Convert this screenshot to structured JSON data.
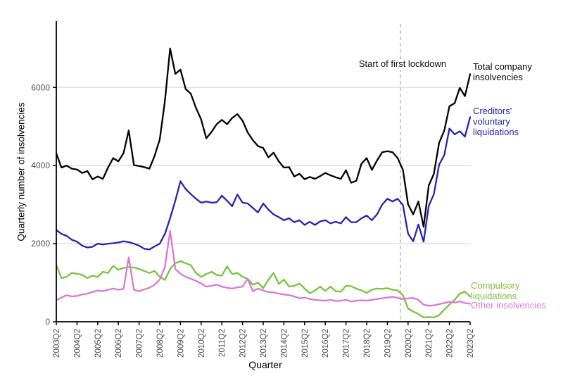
{
  "chart_data": {
    "type": "line",
    "title": "",
    "xlabel": "Quarter",
    "ylabel": "Quarterly number of insolvencies",
    "ylim": [
      0,
      7700
    ],
    "yticks": [
      0,
      2000,
      4000,
      6000
    ],
    "xtick_every": 4,
    "grid": "horizontal light-gray gridlines at yticks",
    "legend_position": "direct labels right of lines",
    "colors": {
      "grid": "#d9d9d9",
      "dashed_line": "#b3b3b3",
      "tick_label": "#4d4d4d",
      "axis": "#000000"
    },
    "annotation": {
      "label": "Start of first lockdown",
      "x_quarter": "2020Q1",
      "style": "vertical dashed gray line"
    },
    "x_quarters": [
      "2003Q2",
      "2003Q3",
      "2003Q4",
      "2004Q1",
      "2004Q2",
      "2004Q3",
      "2004Q4",
      "2005Q1",
      "2005Q2",
      "2005Q3",
      "2005Q4",
      "2006Q1",
      "2006Q2",
      "2006Q3",
      "2006Q4",
      "2007Q1",
      "2007Q2",
      "2007Q3",
      "2007Q4",
      "2008Q1",
      "2008Q2",
      "2008Q3",
      "2008Q4",
      "2009Q1",
      "2009Q2",
      "2009Q3",
      "2009Q4",
      "2010Q1",
      "2010Q2",
      "2010Q3",
      "2010Q4",
      "2011Q1",
      "2011Q2",
      "2011Q3",
      "2011Q4",
      "2012Q1",
      "2012Q2",
      "2012Q3",
      "2012Q4",
      "2013Q1",
      "2013Q2",
      "2013Q3",
      "2013Q4",
      "2014Q1",
      "2014Q2",
      "2014Q3",
      "2014Q4",
      "2015Q1",
      "2015Q2",
      "2015Q3",
      "2015Q4",
      "2016Q1",
      "2016Q2",
      "2016Q3",
      "2016Q4",
      "2017Q1",
      "2017Q2",
      "2017Q3",
      "2017Q4",
      "2018Q1",
      "2018Q2",
      "2018Q3",
      "2018Q4",
      "2019Q1",
      "2019Q2",
      "2019Q3",
      "2019Q4",
      "2020Q1",
      "2020Q2",
      "2020Q3",
      "2020Q4",
      "2021Q1",
      "2021Q2",
      "2021Q3",
      "2021Q4",
      "2022Q1",
      "2022Q2",
      "2022Q3",
      "2022Q4",
      "2023Q1",
      "2023Q2"
    ],
    "series": [
      {
        "name": "Total company insolvencies",
        "color": "#000000",
        "values": [
          4310,
          3950,
          4000,
          3920,
          3900,
          3810,
          3860,
          3650,
          3720,
          3660,
          3950,
          4190,
          4110,
          4320,
          4900,
          4010,
          3990,
          3960,
          3920,
          4250,
          4670,
          5650,
          7000,
          6350,
          6460,
          5960,
          5840,
          5480,
          5180,
          4700,
          4860,
          5060,
          5170,
          5060,
          5220,
          5320,
          5150,
          4850,
          4650,
          4500,
          4450,
          4210,
          4330,
          4110,
          3950,
          3960,
          3720,
          3790,
          3650,
          3710,
          3660,
          3730,
          3810,
          3750,
          3700,
          3660,
          3880,
          3560,
          3610,
          4050,
          4190,
          3890,
          4130,
          4340,
          4370,
          4340,
          4190,
          3890,
          3010,
          2750,
          3080,
          2430,
          3490,
          3790,
          4580,
          4900,
          5520,
          5600,
          5990,
          5780,
          6340
        ]
      },
      {
        "name": "Creditors' voluntary liquidations",
        "color": "#2323b4",
        "values": [
          2350,
          2250,
          2200,
          2100,
          2050,
          1950,
          1900,
          1920,
          2000,
          1980,
          2000,
          2010,
          2030,
          2060,
          2040,
          2000,
          1950,
          1870,
          1850,
          1930,
          2000,
          2250,
          2650,
          3100,
          3600,
          3400,
          3270,
          3150,
          3050,
          3080,
          3050,
          3060,
          3230,
          3100,
          2960,
          3260,
          3050,
          3030,
          2915,
          2800,
          3030,
          2870,
          2750,
          2680,
          2600,
          2650,
          2550,
          2600,
          2480,
          2560,
          2480,
          2570,
          2600,
          2520,
          2560,
          2520,
          2680,
          2550,
          2550,
          2650,
          2720,
          2600,
          2750,
          3000,
          3150,
          3080,
          3150,
          2990,
          2260,
          2060,
          2490,
          2050,
          2970,
          3270,
          4020,
          4270,
          4950,
          4800,
          4880,
          4740,
          5240
        ]
      },
      {
        "name": "Compulsory liquidations",
        "color": "#78c33c",
        "values": [
          1450,
          1120,
          1150,
          1250,
          1230,
          1200,
          1120,
          1180,
          1150,
          1280,
          1250,
          1430,
          1330,
          1380,
          1400,
          1390,
          1350,
          1300,
          1250,
          1300,
          1150,
          1070,
          1350,
          1500,
          1550,
          1500,
          1450,
          1250,
          1150,
          1220,
          1280,
          1200,
          1180,
          1420,
          1220,
          1250,
          1150,
          1100,
          950,
          1000,
          860,
          1080,
          1250,
          970,
          1080,
          900,
          920,
          980,
          850,
          730,
          800,
          900,
          790,
          900,
          780,
          770,
          920,
          910,
          850,
          800,
          740,
          820,
          850,
          840,
          860,
          820,
          800,
          680,
          340,
          260,
          200,
          110,
          120,
          110,
          170,
          310,
          440,
          560,
          720,
          770,
          645
        ]
      },
      {
        "name": "Other insolvencies",
        "color": "#d878d8",
        "values": [
          550,
          620,
          680,
          650,
          660,
          700,
          720,
          760,
          800,
          780,
          820,
          850,
          820,
          840,
          1650,
          820,
          780,
          830,
          870,
          950,
          1080,
          1400,
          2330,
          1350,
          1230,
          1150,
          1100,
          1050,
          980,
          900,
          920,
          950,
          900,
          870,
          850,
          880,
          900,
          1100,
          780,
          850,
          800,
          760,
          750,
          720,
          700,
          680,
          650,
          600,
          620,
          580,
          560,
          550,
          540,
          560,
          530,
          540,
          560,
          520,
          540,
          550,
          540,
          560,
          580,
          600,
          620,
          640,
          610,
          580,
          600,
          610,
          560,
          440,
          410,
          420,
          450,
          480,
          510,
          490,
          520,
          480,
          460
        ]
      }
    ]
  }
}
